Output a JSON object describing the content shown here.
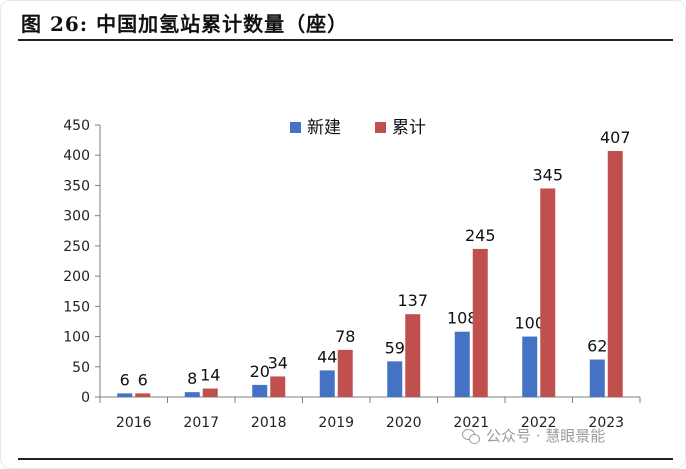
{
  "figure": {
    "title": "图 26:  中国加氢站累计数量（座）",
    "watermark": "公众号 · 慧眼景能"
  },
  "colors": {
    "new": "#4472C4",
    "cumulative": "#C0504D",
    "axis": "#7f7f7f",
    "text": "#222222"
  },
  "chart_data": {
    "type": "bar",
    "title": "中国加氢站累计数量（座）",
    "xlabel": "",
    "ylabel": "",
    "ylim": [
      0,
      450
    ],
    "yticks": [
      0,
      50,
      100,
      150,
      200,
      250,
      300,
      350,
      400,
      450
    ],
    "grid": false,
    "legend_position": "top-center",
    "categories": [
      "2016",
      "2017",
      "2018",
      "2019",
      "2020",
      "2021",
      "2022",
      "2023"
    ],
    "series": [
      {
        "name": "新建",
        "color": "#4472C4",
        "values": [
          6,
          8,
          20,
          44,
          59,
          108,
          100,
          62
        ]
      },
      {
        "name": "累计",
        "color": "#C0504D",
        "values": [
          6,
          14,
          34,
          78,
          137,
          245,
          345,
          407
        ]
      }
    ]
  }
}
